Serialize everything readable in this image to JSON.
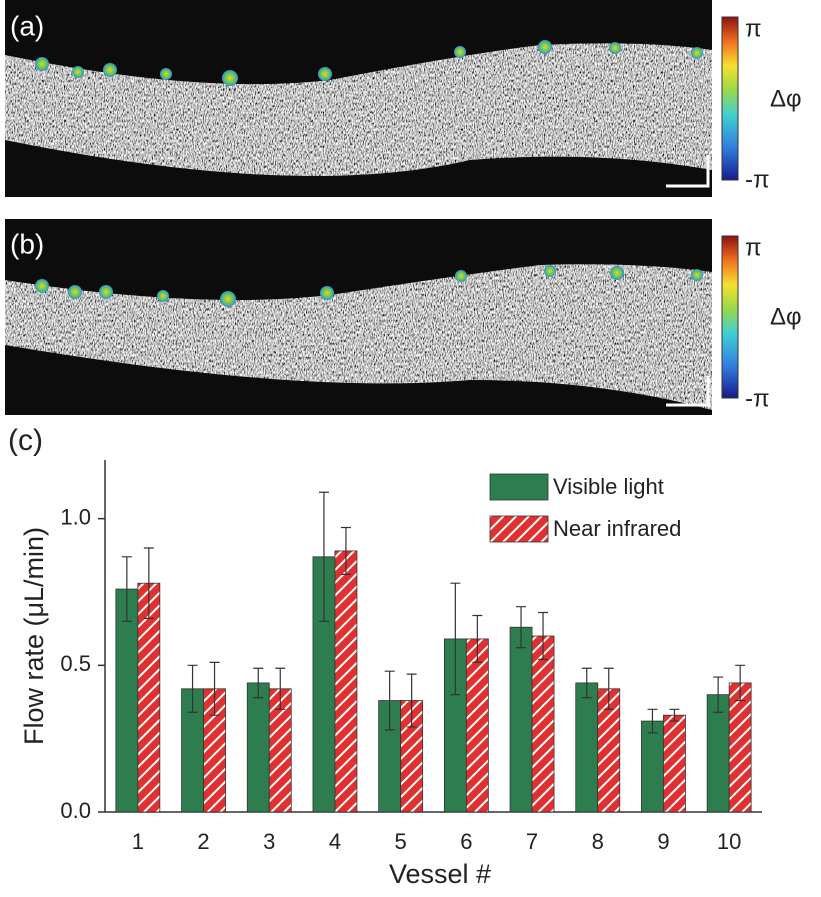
{
  "panels": [
    {
      "label": "(a)",
      "colorbar": {
        "max": "π",
        "name": "Δφ",
        "min": "-π"
      }
    },
    {
      "label": "(b)",
      "colorbar": {
        "max": "π",
        "name": "Δφ",
        "min": "-π"
      }
    }
  ],
  "chart_data": {
    "type": "bar",
    "label": "(c)",
    "x_label": "Vessel #",
    "y_label": "Flow rate (μL/min)",
    "categories": [
      "1",
      "2",
      "3",
      "4",
      "5",
      "6",
      "7",
      "8",
      "9",
      "10"
    ],
    "series": [
      {
        "name": "Visible light",
        "color": "#2e7d4f",
        "pattern": "solid",
        "values": [
          0.76,
          0.42,
          0.44,
          0.87,
          0.38,
          0.59,
          0.63,
          0.44,
          0.31,
          0.4
        ],
        "errors": [
          0.11,
          0.08,
          0.05,
          0.22,
          0.1,
          0.19,
          0.07,
          0.05,
          0.04,
          0.06
        ]
      },
      {
        "name": "Near infrared",
        "color": "#e03030",
        "pattern": "hatch",
        "values": [
          0.78,
          0.42,
          0.42,
          0.89,
          0.38,
          0.59,
          0.6,
          0.42,
          0.33,
          0.44
        ],
        "errors": [
          0.12,
          0.09,
          0.07,
          0.08,
          0.09,
          0.08,
          0.08,
          0.07,
          0.02,
          0.06
        ]
      }
    ],
    "ylim": [
      0,
      1.2
    ],
    "yticks": [
      {
        "value": 0,
        "label": "0.0"
      },
      0.5,
      {
        "value": 1,
        "label": "1.0"
      }
    ],
    "legend": "upper right"
  }
}
